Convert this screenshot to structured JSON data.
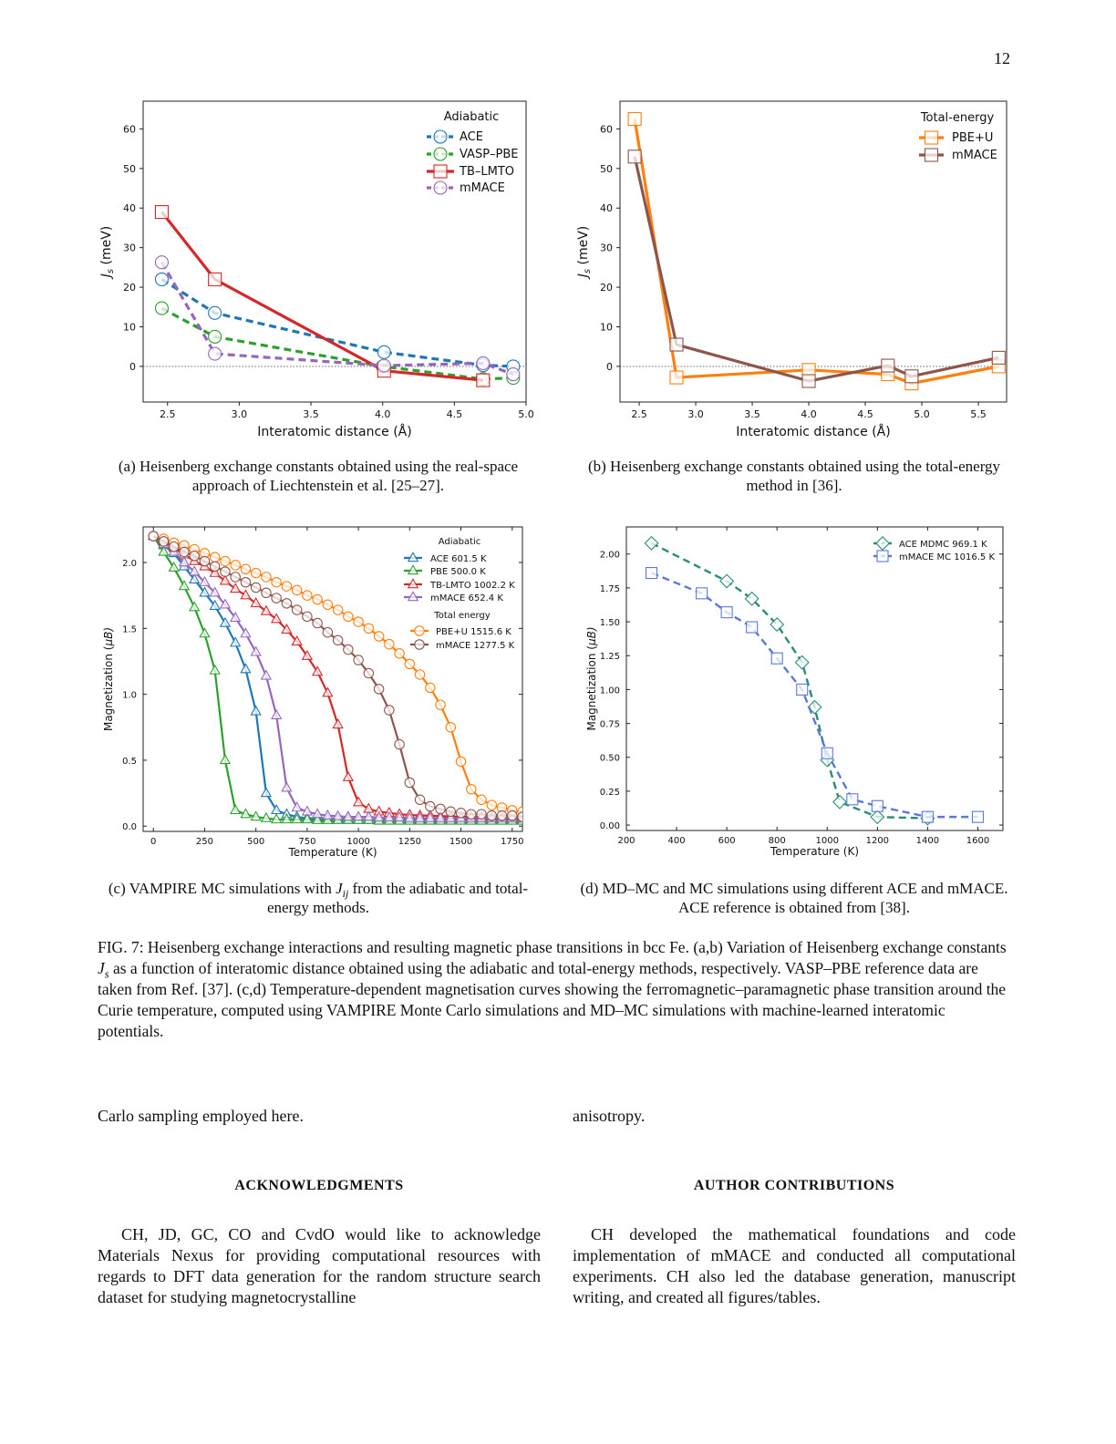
{
  "page_number": "12",
  "colors": {
    "ace": "#1f77b4",
    "vasp_pbe": "#2ca02c",
    "tb_lmto": "#d62728",
    "mmace": "#9467bd",
    "pbe_u": "#ff7f0e",
    "mmace_total": "#8c564b",
    "ace_mdmc": "#2a8c78",
    "mmace_mc": "#5a78d8"
  },
  "chart_data": [
    {
      "id": "a",
      "type": "line",
      "xlabel": "Interatomic distance (Å)",
      "ylabel_var": "J",
      "ylabel_sub": "s",
      "ylabel_rest": " (meV)",
      "xlim": [
        2.33,
        5.0
      ],
      "ylim": [
        -9,
        67
      ],
      "xticks": [
        2.5,
        3.0,
        3.5,
        4.0,
        4.5,
        5.0
      ],
      "xtick_labels": [
        "2.5",
        "3.0",
        "3.5",
        "4.0",
        "4.5",
        "5.0"
      ],
      "yticks": [
        0,
        10,
        20,
        30,
        40,
        50,
        60
      ],
      "ytick_labels": [
        "0",
        "10",
        "20",
        "30",
        "40",
        "50",
        "60"
      ],
      "zero_line": true,
      "tick_direction": "out",
      "legend": [
        {
          "title": "Adiabatic",
          "entries": [
            0,
            1,
            2,
            3
          ]
        }
      ],
      "legend_placement": "top-right",
      "series": [
        {
          "name": "ACE",
          "color": "#1f77b4",
          "marker": "circle",
          "dashed": true,
          "x": [
            2.46,
            2.83,
            4.01,
            4.7,
            4.91
          ],
          "y": [
            22.0,
            13.5,
            3.6,
            0.3,
            0.0
          ]
        },
        {
          "name": "VASP–PBE",
          "color": "#2ca02c",
          "marker": "circle",
          "dashed": true,
          "x": [
            2.46,
            2.83,
            4.0,
            4.7,
            4.91
          ],
          "y": [
            14.7,
            7.5,
            0.0,
            -3.2,
            -2.9
          ]
        },
        {
          "name": "TB–LMTO",
          "color": "#d62728",
          "marker": "square",
          "dashed": false,
          "x": [
            2.46,
            2.83,
            4.01,
            4.7
          ],
          "y": [
            39.0,
            22.0,
            -1.1,
            -3.5
          ]
        },
        {
          "name": "mMACE",
          "color": "#9467bd",
          "marker": "circle",
          "dashed": true,
          "x": [
            2.46,
            2.83,
            4.01,
            4.7,
            4.91
          ],
          "y": [
            26.3,
            3.2,
            0.2,
            0.8,
            -2.0
          ]
        }
      ]
    },
    {
      "id": "b",
      "type": "line",
      "xlabel": "Interatomic distance (Å)",
      "ylabel_var": "J",
      "ylabel_sub": "s",
      "ylabel_rest": " (meV)",
      "xlim": [
        2.33,
        5.75
      ],
      "ylim": [
        -9,
        67
      ],
      "xticks": [
        2.5,
        3.0,
        3.5,
        4.0,
        4.5,
        5.0,
        5.5
      ],
      "xtick_labels": [
        "2.5",
        "3.0",
        "3.5",
        "4.0",
        "4.5",
        "5.0",
        "5.5"
      ],
      "yticks": [
        0,
        10,
        20,
        30,
        40,
        50,
        60
      ],
      "ytick_labels": [
        "0",
        "10",
        "20",
        "30",
        "40",
        "50",
        "60"
      ],
      "zero_line": true,
      "tick_direction": "out",
      "legend": [
        {
          "title": "Total-energy",
          "entries": [
            0,
            1
          ]
        }
      ],
      "legend_placement": "top-right",
      "series": [
        {
          "name": "PBE+U",
          "color": "#ff7f0e",
          "marker": "square",
          "dashed": false,
          "x": [
            2.46,
            2.83,
            4.0,
            4.7,
            4.91,
            5.68
          ],
          "y": [
            62.5,
            -2.8,
            -0.9,
            -2.0,
            -4.3,
            0.0
          ]
        },
        {
          "name": "mMACE",
          "color": "#8c564b",
          "marker": "square",
          "dashed": false,
          "x": [
            2.46,
            2.83,
            4.0,
            4.7,
            4.91,
            5.68
          ],
          "y": [
            53.0,
            5.5,
            -3.7,
            0.2,
            -2.5,
            2.2
          ]
        }
      ]
    },
    {
      "id": "c",
      "type": "line",
      "xlabel": "Temperature (K)",
      "ylabel_var": "Magnetization (",
      "ylabel_sub": "",
      "ylabel_rest": "μB)",
      "xlim": [
        -50,
        1800
      ],
      "ylim": [
        -0.04,
        2.27
      ],
      "xticks": [
        0,
        250,
        500,
        750,
        1000,
        1250,
        1500,
        1750
      ],
      "xtick_labels": [
        "0",
        "250",
        "500",
        "750",
        "1000",
        "1250",
        "1500",
        "1750"
      ],
      "yticks": [
        0,
        0.5,
        1.0,
        1.5,
        2.0
      ],
      "ytick_labels": [
        "0.0",
        "0.5",
        "1.0",
        "1.5",
        "2.0"
      ],
      "zero_line": false,
      "tick_direction": "in",
      "legend": [
        {
          "title": "Adiabatic",
          "entries": [
            0,
            1,
            2,
            3
          ]
        },
        {
          "title": "Total energy",
          "entries": [
            4,
            5
          ]
        }
      ],
      "legend_placement": "top-right",
      "x_common": [
        0,
        50,
        100,
        150,
        200,
        250,
        300,
        350,
        400,
        450,
        500,
        550,
        600,
        650,
        700,
        750,
        800,
        850,
        900,
        950,
        1000,
        1050,
        1100,
        1150,
        1200,
        1250,
        1300,
        1350,
        1400,
        1450,
        1500,
        1550,
        1600,
        1650,
        1700,
        1750,
        1800
      ],
      "series": [
        {
          "name": "ACE 601.5 K",
          "color": "#1f77b4",
          "marker": "triangle",
          "dashed": false,
          "y": [
            2.2,
            2.13,
            2.07,
            1.97,
            1.87,
            1.77,
            1.67,
            1.54,
            1.39,
            1.19,
            0.87,
            0.25,
            0.12,
            0.09,
            0.07,
            0.06,
            0.06,
            0.06,
            0.055,
            0.055,
            0.05,
            0.05,
            0.05,
            0.05,
            0.05,
            0.05,
            0.05,
            0.05,
            0.05,
            0.05,
            0.05,
            0.05,
            0.05,
            0.05,
            0.05,
            0.05,
            0.05
          ]
        },
        {
          "name": "PBE 500.0 K",
          "color": "#2ca02c",
          "marker": "triangle",
          "dashed": false,
          "y": [
            2.2,
            2.08,
            1.96,
            1.82,
            1.66,
            1.46,
            1.18,
            0.5,
            0.12,
            0.09,
            0.07,
            0.06,
            0.05,
            0.05,
            0.05,
            0.05,
            0.045,
            0.045,
            0.045,
            0.045,
            0.045,
            0.045,
            0.04,
            0.04,
            0.04,
            0.04,
            0.04,
            0.04,
            0.04,
            0.04,
            0.04,
            0.04,
            0.04,
            0.04,
            0.04,
            0.04,
            0.04
          ]
        },
        {
          "name": "TB-LMTO 1002.2 K",
          "color": "#d62728",
          "marker": "triangle",
          "dashed": false,
          "y": [
            2.2,
            2.16,
            2.11,
            2.06,
            2.01,
            1.97,
            1.92,
            1.86,
            1.8,
            1.75,
            1.69,
            1.63,
            1.57,
            1.49,
            1.4,
            1.29,
            1.17,
            1.01,
            0.77,
            0.37,
            0.18,
            0.13,
            0.11,
            0.1,
            0.09,
            0.085,
            0.08,
            0.08,
            0.075,
            0.075,
            0.07,
            0.07,
            0.07,
            0.065,
            0.065,
            0.065,
            0.06
          ]
        },
        {
          "name": "mMACE 652.4 K",
          "color": "#9467bd",
          "marker": "triangle",
          "dashed": false,
          "y": [
            2.2,
            2.14,
            2.08,
            2.0,
            1.93,
            1.85,
            1.77,
            1.68,
            1.58,
            1.46,
            1.32,
            1.14,
            0.84,
            0.29,
            0.14,
            0.11,
            0.09,
            0.08,
            0.075,
            0.07,
            0.07,
            0.07,
            0.065,
            0.065,
            0.065,
            0.06,
            0.06,
            0.06,
            0.06,
            0.06,
            0.06,
            0.06,
            0.06,
            0.06,
            0.06,
            0.06,
            0.06
          ]
        },
        {
          "name": "PBE+U 1515.6 K",
          "color": "#ff7f0e",
          "marker": "circle",
          "dashed": false,
          "y": [
            2.2,
            2.18,
            2.15,
            2.13,
            2.1,
            2.07,
            2.04,
            2.01,
            1.98,
            1.95,
            1.92,
            1.89,
            1.85,
            1.82,
            1.79,
            1.75,
            1.72,
            1.68,
            1.64,
            1.59,
            1.55,
            1.5,
            1.44,
            1.38,
            1.31,
            1.23,
            1.15,
            1.05,
            0.92,
            0.75,
            0.49,
            0.28,
            0.2,
            0.16,
            0.14,
            0.12,
            0.11
          ]
        },
        {
          "name": "mMACE 1277.5 K",
          "color": "#8c564b",
          "marker": "circle",
          "dashed": false,
          "y": [
            2.2,
            2.16,
            2.12,
            2.08,
            2.05,
            2.01,
            1.97,
            1.93,
            1.89,
            1.85,
            1.81,
            1.77,
            1.73,
            1.69,
            1.64,
            1.59,
            1.54,
            1.47,
            1.41,
            1.34,
            1.26,
            1.16,
            1.04,
            0.88,
            0.62,
            0.33,
            0.2,
            0.15,
            0.13,
            0.11,
            0.1,
            0.09,
            0.09,
            0.08,
            0.08,
            0.08,
            0.07
          ]
        }
      ]
    },
    {
      "id": "d",
      "type": "line",
      "xlabel": "Temperature (K)",
      "ylabel_var": "Magnetization (",
      "ylabel_sub": "",
      "ylabel_rest": "μB)",
      "xlim": [
        200,
        1700
      ],
      "ylim": [
        -0.04,
        2.2
      ],
      "xticks": [
        200,
        400,
        600,
        800,
        1000,
        1200,
        1400,
        1600
      ],
      "xtick_labels": [
        "200",
        "400",
        "600",
        "800",
        "1000",
        "1200",
        "1400",
        "1600"
      ],
      "yticks": [
        0,
        0.25,
        0.5,
        0.75,
        1.0,
        1.25,
        1.5,
        1.75,
        2.0
      ],
      "ytick_labels": [
        "0.00",
        "0.25",
        "0.50",
        "0.75",
        "1.00",
        "1.25",
        "1.50",
        "1.75",
        "2.00"
      ],
      "zero_line": false,
      "tick_direction": "in",
      "legend": [
        {
          "title": "",
          "entries": [
            0,
            1
          ]
        }
      ],
      "legend_placement": "top-right",
      "series": [
        {
          "name": "ACE MDMC 969.1 K",
          "color": "#2a8c78",
          "marker": "diamond",
          "dashed": true,
          "x": [
            300,
            600,
            700,
            800,
            900,
            950,
            1000,
            1050,
            1200,
            1400
          ],
          "y": [
            2.08,
            1.8,
            1.67,
            1.48,
            1.2,
            0.87,
            0.48,
            0.17,
            0.06,
            0.05
          ]
        },
        {
          "name": "mMACE MC 1016.5 K",
          "color": "#5a78d8",
          "marker": "square",
          "dashed": true,
          "x": [
            300,
            500,
            600,
            700,
            800,
            900,
            1000,
            1100,
            1200,
            1400,
            1600
          ],
          "y": [
            1.86,
            1.71,
            1.57,
            1.46,
            1.23,
            1.0,
            0.53,
            0.19,
            0.14,
            0.06,
            0.06
          ]
        }
      ]
    }
  ],
  "captions": {
    "a": "(a) Heisenberg exchange constants obtained using the real-space approach of Liechtenstein et al. [25–27].",
    "b": "(b) Heisenberg exchange constants obtained using the total-energy method in [36].",
    "c_pre": "(c) VAMPIRE MC simulations with ",
    "c_var": "J",
    "c_sub": "ij",
    "c_post": " from the adiabatic and total-energy methods.",
    "d": "(d) MD–MC and MC simulations using different ACE and mMACE. ACE reference is obtained from [38]."
  },
  "figure_caption": {
    "pre": "FIG. 7: Heisenberg exchange interactions and resulting magnetic phase transitions in bcc Fe. (a,b) Variation of Heisenberg exchange constants ",
    "var": "J",
    "sub": "s",
    "post": " as a function of interatomic distance obtained using the adiabatic and total-energy methods, respectively. VASP–PBE reference data are taken from Ref. [37]. (c,d) Temperature-dependent magnetisation curves showing the ferromagnetic–paramagnetic phase transition around the Curie temperature, computed using VAMPIRE Monte Carlo simulations and MD–MC simulations with machine-learned interatomic potentials."
  },
  "body": {
    "left_fragment": "Carlo sampling employed here.",
    "right_fragment": "anisotropy.",
    "ack_heading": "ACKNOWLEDGMENTS",
    "ack_text": "CH, JD, GC, CO and CvdO would like to acknowledge Materials Nexus for providing computational resources with regards to DFT data generation for the random structure search dataset for studying magnetocrystalline",
    "contrib_heading": "AUTHOR CONTRIBUTIONS",
    "contrib_text": "CH developed the mathematical foundations and code implementation of mMACE and conducted all compu­tational experiments. CH also led the database genera­tion, manuscript writing, and created all figures/tables."
  }
}
